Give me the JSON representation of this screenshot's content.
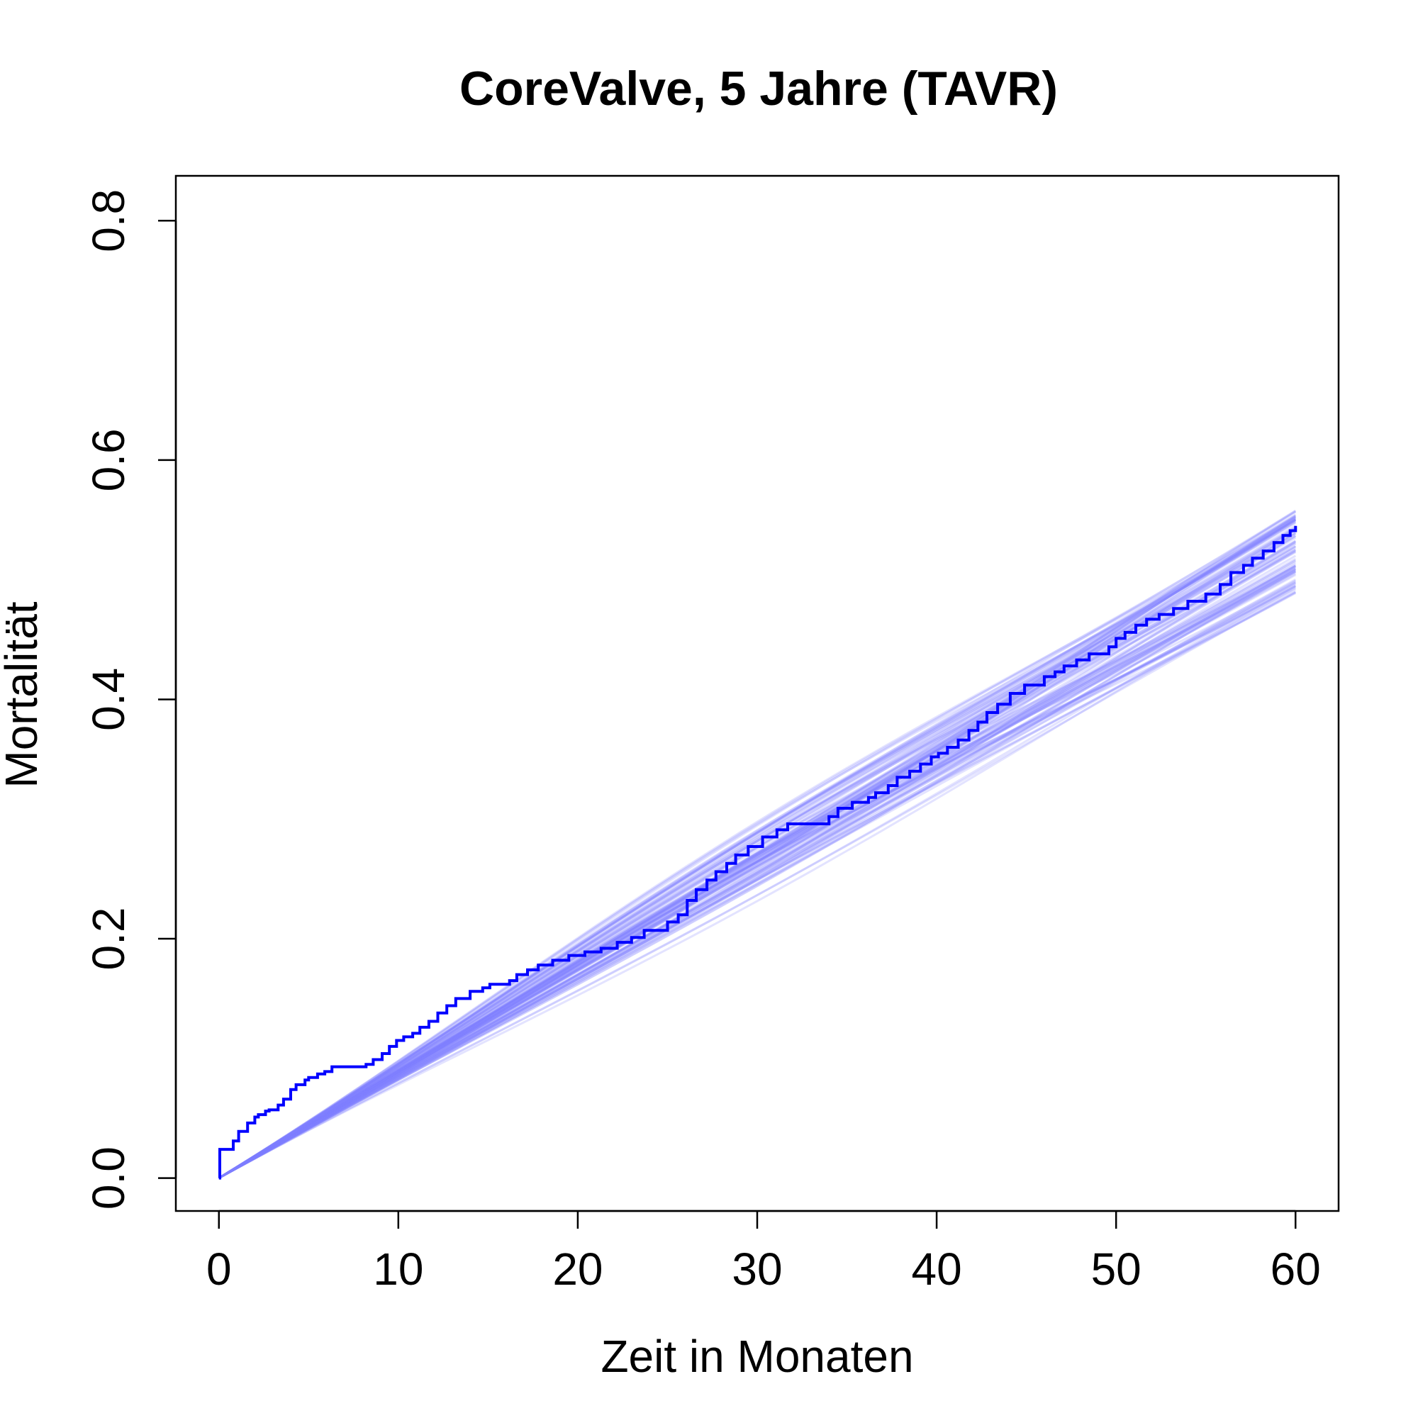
{
  "chart_data": {
    "type": "line",
    "title": "CoreValve, 5 Jahre (TAVR)",
    "xlabel": "Zeit in Monaten",
    "ylabel": "Mortalität",
    "xlim": [
      -2.4,
      62.4
    ],
    "ylim": [
      -0.0275,
      0.8375
    ],
    "x_ticks": [
      0,
      10,
      20,
      30,
      40,
      50,
      60
    ],
    "x_tick_labels": [
      "0",
      "10",
      "20",
      "30",
      "40",
      "50",
      "60"
    ],
    "y_ticks": [
      0.0,
      0.2,
      0.4,
      0.6,
      0.8
    ],
    "y_tick_labels": [
      "0.0",
      "0.2",
      "0.4",
      "0.6",
      "0.8"
    ],
    "grid": false,
    "legend": "none",
    "colors": {
      "observed": "#0000ff",
      "simulated": "#8080ff"
    },
    "observed_step": {
      "x": [
        0,
        0.05,
        0.8,
        1.1,
        1.6,
        2.0,
        2.2,
        2.6,
        2.8,
        3.3,
        3.6,
        4.0,
        4.3,
        4.8,
        5.0,
        5.5,
        5.9,
        6.3,
        8.2,
        8.6,
        9.1,
        9.5,
        9.9,
        10.3,
        10.8,
        11.2,
        11.7,
        12.2,
        12.7,
        13.2,
        14.0,
        14.7,
        15.1,
        16.2,
        16.6,
        17.2,
        17.8,
        18.6,
        19.5,
        20.4,
        21.3,
        22.2,
        23.0,
        23.7,
        25.0,
        25.6,
        26.1,
        26.6,
        27.2,
        27.7,
        28.3,
        28.8,
        29.5,
        30.3,
        31.1,
        31.7,
        34.0,
        34.5,
        35.3,
        36.2,
        36.6,
        37.3,
        37.8,
        38.5,
        39.1,
        39.7,
        40.1,
        40.6,
        41.2,
        41.8,
        42.3,
        42.8,
        43.4,
        44.1,
        44.9,
        46.0,
        46.6,
        47.1,
        47.8,
        48.5,
        49.6,
        50.0,
        50.5,
        51.1,
        51.7,
        52.4,
        53.2,
        54.0,
        55.0,
        55.8,
        56.4,
        57.1,
        57.6,
        58.2,
        58.8,
        59.3,
        59.7,
        60.0
      ],
      "y": [
        0.0,
        0.024,
        0.031,
        0.039,
        0.046,
        0.051,
        0.053,
        0.056,
        0.057,
        0.061,
        0.066,
        0.074,
        0.078,
        0.082,
        0.084,
        0.087,
        0.089,
        0.093,
        0.095,
        0.099,
        0.104,
        0.11,
        0.115,
        0.118,
        0.121,
        0.126,
        0.131,
        0.138,
        0.144,
        0.15,
        0.156,
        0.159,
        0.162,
        0.165,
        0.17,
        0.174,
        0.178,
        0.182,
        0.186,
        0.189,
        0.192,
        0.197,
        0.201,
        0.207,
        0.214,
        0.22,
        0.232,
        0.241,
        0.249,
        0.256,
        0.263,
        0.27,
        0.277,
        0.285,
        0.291,
        0.296,
        0.302,
        0.309,
        0.314,
        0.318,
        0.322,
        0.328,
        0.335,
        0.34,
        0.346,
        0.352,
        0.355,
        0.36,
        0.366,
        0.374,
        0.381,
        0.389,
        0.396,
        0.405,
        0.412,
        0.419,
        0.423,
        0.428,
        0.433,
        0.438,
        0.444,
        0.451,
        0.456,
        0.462,
        0.467,
        0.471,
        0.476,
        0.482,
        0.488,
        0.496,
        0.506,
        0.512,
        0.518,
        0.524,
        0.531,
        0.537,
        0.541,
        0.545
      ]
    },
    "simulated_band": {
      "count": 100,
      "x_range": [
        0,
        60
      ],
      "y_at_60": {
        "min": 0.488,
        "max": 0.558
      },
      "y_at_10": {
        "min": 0.085,
        "max": 0.125
      },
      "y_at_30": {
        "min": 0.285,
        "max": 0.318
      },
      "y_at_40": {
        "min": 0.36,
        "max": 0.392
      }
    }
  }
}
